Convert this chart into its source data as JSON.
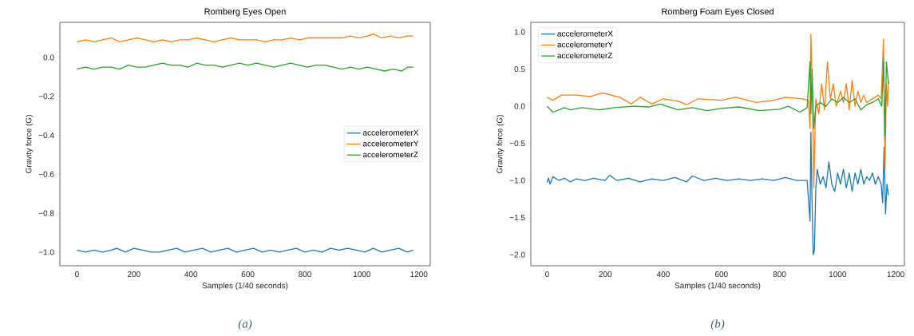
{
  "chart_data": [
    {
      "type": "line",
      "title": "Romberg Eyes Open",
      "xlabel": "Samples (1/40 seconds)",
      "ylabel": "Gravity force (G)",
      "annotations": [
        "(a)"
      ],
      "xlim": [
        -60,
        1240
      ],
      "ylim": [
        -1.07,
        0.18
      ],
      "xticks": [
        0,
        200,
        400,
        600,
        800,
        1000,
        1200
      ],
      "yticks": [
        {
          "value": -1.0,
          "label": "−1.0"
        },
        {
          "value": -0.8,
          "label": "−0.8"
        },
        {
          "value": -0.6,
          "label": "−0.6"
        },
        {
          "value": -0.4,
          "label": "−0.4"
        },
        {
          "value": -0.2,
          "label": "−0.2"
        },
        {
          "value": 0.0,
          "label": "0.0"
        }
      ],
      "legend": "right",
      "grid": false,
      "series": [
        {
          "name": "accelerometerX",
          "color": "#1f77b4",
          "x": [
            0,
            30,
            60,
            90,
            120,
            140,
            170,
            200,
            230,
            260,
            290,
            320,
            350,
            380,
            410,
            440,
            470,
            500,
            530,
            560,
            590,
            620,
            650,
            680,
            710,
            740,
            770,
            800,
            830,
            860,
            890,
            920,
            950,
            980,
            1010,
            1040,
            1070,
            1100,
            1130,
            1160,
            1180
          ],
          "values": [
            -0.99,
            -1.0,
            -0.99,
            -1.0,
            -0.99,
            -0.98,
            -1.0,
            -0.98,
            -0.99,
            -1.0,
            -1.0,
            -0.99,
            -0.98,
            -1.0,
            -0.99,
            -0.98,
            -1.0,
            -0.99,
            -0.98,
            -1.0,
            -0.99,
            -0.98,
            -1.0,
            -0.99,
            -1.0,
            -0.99,
            -0.98,
            -1.0,
            -0.99,
            -1.0,
            -0.98,
            -0.99,
            -0.98,
            -0.99,
            -1.0,
            -0.98,
            -1.0,
            -0.99,
            -0.98,
            -1.0,
            -0.99
          ]
        },
        {
          "name": "accelerometerY",
          "color": "#ff7f0e",
          "x": [
            0,
            30,
            60,
            90,
            120,
            150,
            180,
            210,
            240,
            270,
            300,
            330,
            360,
            390,
            420,
            450,
            480,
            510,
            540,
            570,
            600,
            630,
            660,
            690,
            720,
            750,
            780,
            810,
            840,
            870,
            900,
            930,
            960,
            990,
            1020,
            1040,
            1070,
            1100,
            1130,
            1160,
            1180
          ],
          "values": [
            0.08,
            0.09,
            0.08,
            0.09,
            0.1,
            0.08,
            0.09,
            0.1,
            0.09,
            0.08,
            0.09,
            0.08,
            0.09,
            0.09,
            0.1,
            0.09,
            0.08,
            0.09,
            0.1,
            0.09,
            0.09,
            0.09,
            0.08,
            0.09,
            0.09,
            0.1,
            0.09,
            0.1,
            0.1,
            0.1,
            0.1,
            0.1,
            0.11,
            0.1,
            0.11,
            0.12,
            0.1,
            0.11,
            0.1,
            0.11,
            0.11
          ]
        },
        {
          "name": "accelerometerZ",
          "color": "#2ca02c",
          "x": [
            0,
            30,
            60,
            90,
            120,
            150,
            180,
            210,
            240,
            270,
            300,
            330,
            360,
            390,
            420,
            450,
            480,
            510,
            540,
            570,
            600,
            630,
            660,
            690,
            720,
            750,
            780,
            810,
            840,
            870,
            900,
            930,
            960,
            990,
            1020,
            1050,
            1080,
            1110,
            1140,
            1160,
            1180
          ],
          "values": [
            -0.06,
            -0.05,
            -0.06,
            -0.05,
            -0.05,
            -0.06,
            -0.04,
            -0.05,
            -0.05,
            -0.04,
            -0.03,
            -0.04,
            -0.04,
            -0.05,
            -0.03,
            -0.04,
            -0.04,
            -0.05,
            -0.04,
            -0.03,
            -0.04,
            -0.03,
            -0.04,
            -0.05,
            -0.04,
            -0.03,
            -0.04,
            -0.05,
            -0.04,
            -0.04,
            -0.05,
            -0.06,
            -0.05,
            -0.06,
            -0.05,
            -0.06,
            -0.07,
            -0.06,
            -0.07,
            -0.05,
            -0.05
          ]
        }
      ]
    },
    {
      "type": "line",
      "title": "Romberg Foam Eyes Closed",
      "xlabel": "Samples (1/40 seconds)",
      "ylabel": "Gravity force (G)",
      "annotations": [
        "(b)"
      ],
      "xlim": [
        -56,
        1230
      ],
      "ylim": [
        -2.15,
        1.13
      ],
      "xticks": [
        0,
        200,
        400,
        600,
        800,
        1000,
        1200
      ],
      "yticks": [
        {
          "value": -2.0,
          "label": "−2.0"
        },
        {
          "value": -1.5,
          "label": "−1.5"
        },
        {
          "value": -1.0,
          "label": "−1.0"
        },
        {
          "value": -0.5,
          "label": "−0.5"
        },
        {
          "value": 0.0,
          "label": "0.0"
        },
        {
          "value": 0.5,
          "label": "0.5"
        },
        {
          "value": 1.0,
          "label": "1.0"
        }
      ],
      "legend": "top left",
      "grid": false,
      "series": [
        {
          "name": "accelerometerX",
          "color": "#1f77b4",
          "x": [
            0,
            5,
            10,
            20,
            40,
            60,
            80,
            100,
            130,
            160,
            200,
            215,
            240,
            280,
            320,
            360,
            400,
            440,
            480,
            500,
            540,
            580,
            620,
            660,
            700,
            740,
            780,
            820,
            860,
            895,
            905,
            908,
            912,
            916,
            920,
            925,
            930,
            940,
            950,
            960,
            970,
            980,
            990,
            1000,
            1010,
            1020,
            1030,
            1040,
            1050,
            1060,
            1070,
            1080,
            1090,
            1100,
            1110,
            1120,
            1130,
            1140,
            1150,
            1155,
            1160,
            1165,
            1170,
            1175
          ],
          "values": [
            -1.03,
            -0.97,
            -1.05,
            -0.95,
            -1.0,
            -0.97,
            -1.02,
            -0.98,
            -1.0,
            -0.97,
            -1.0,
            -0.93,
            -1.0,
            -0.97,
            -1.02,
            -0.98,
            -1.0,
            -0.96,
            -1.02,
            -0.94,
            -1.0,
            -0.97,
            -1.0,
            -0.98,
            -1.0,
            -0.98,
            -1.0,
            -0.96,
            -1.0,
            -1.0,
            -1.55,
            -0.35,
            -1.3,
            -2.0,
            -1.95,
            -1.1,
            -0.85,
            -1.05,
            -0.95,
            -1.1,
            -0.75,
            -1.05,
            -1.15,
            -0.9,
            -1.05,
            -0.85,
            -1.1,
            -0.9,
            -1.15,
            -0.9,
            -1.05,
            -0.85,
            -1.05,
            -0.95,
            -1.0,
            -0.9,
            -1.05,
            -0.95,
            -1.05,
            -1.3,
            -0.55,
            -1.45,
            -1.05,
            -1.2
          ]
        },
        {
          "name": "accelerometerY",
          "color": "#ff7f0e",
          "x": [
            0,
            20,
            50,
            100,
            150,
            190,
            250,
            290,
            320,
            360,
            400,
            450,
            480,
            520,
            600,
            650,
            720,
            780,
            820,
            880,
            900,
            905,
            908,
            912,
            918,
            925,
            935,
            945,
            955,
            965,
            975,
            985,
            995,
            1010,
            1020,
            1030,
            1040,
            1050,
            1060,
            1070,
            1080,
            1090,
            1100,
            1120,
            1140,
            1150,
            1158,
            1163,
            1168,
            1172,
            1175
          ],
          "values": [
            0.12,
            0.08,
            0.15,
            0.15,
            0.13,
            0.18,
            0.12,
            0.03,
            0.12,
            0.03,
            0.1,
            0.07,
            0.02,
            0.1,
            0.08,
            0.12,
            0.05,
            0.08,
            0.12,
            0.1,
            0.08,
            -0.3,
            0.97,
            0.4,
            -1.1,
            0.1,
            -0.1,
            0.3,
            -0.05,
            0.6,
            0.1,
            0.3,
            0.0,
            0.2,
            0.05,
            0.3,
            -0.05,
            0.35,
            0.0,
            0.2,
            0.05,
            0.15,
            0.05,
            0.1,
            0.15,
            0.1,
            0.9,
            -0.85,
            0.3,
            0.0,
            0.35
          ]
        },
        {
          "name": "accelerometerZ",
          "color": "#2ca02c",
          "x": [
            0,
            20,
            60,
            80,
            120,
            180,
            230,
            300,
            350,
            390,
            450,
            500,
            550,
            600,
            660,
            730,
            800,
            830,
            870,
            895,
            905,
            908,
            912,
            918,
            925,
            940,
            960,
            980,
            1000,
            1020,
            1040,
            1060,
            1080,
            1100,
            1120,
            1140,
            1152,
            1158,
            1163,
            1168,
            1175
          ],
          "values": [
            0.0,
            -0.08,
            -0.02,
            -0.05,
            -0.02,
            -0.05,
            -0.02,
            0.0,
            -0.01,
            0.03,
            -0.05,
            -0.02,
            -0.06,
            -0.03,
            -0.01,
            -0.06,
            -0.04,
            0.0,
            -0.08,
            -0.02,
            0.6,
            -0.1,
            0.5,
            -0.3,
            0.0,
            0.05,
            0.0,
            0.1,
            0.05,
            0.12,
            0.05,
            0.1,
            -0.05,
            0.02,
            0.05,
            0.1,
            0.0,
            0.6,
            -0.4,
            0.6,
            0.3
          ]
        }
      ]
    }
  ]
}
